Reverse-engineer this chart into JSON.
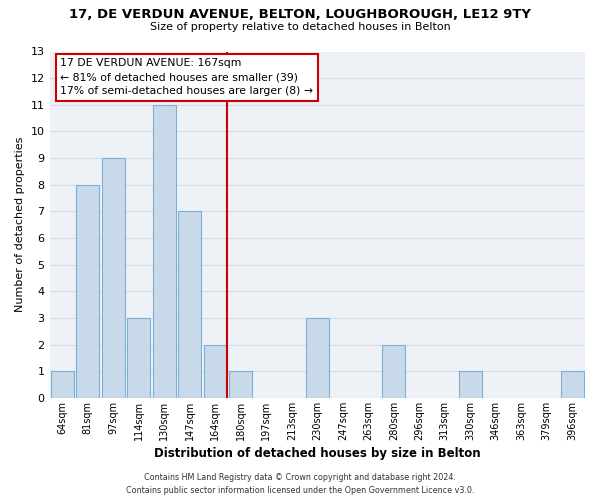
{
  "title": "17, DE VERDUN AVENUE, BELTON, LOUGHBOROUGH, LE12 9TY",
  "subtitle": "Size of property relative to detached houses in Belton",
  "xlabel": "Distribution of detached houses by size in Belton",
  "ylabel": "Number of detached properties",
  "categories": [
    "64sqm",
    "81sqm",
    "97sqm",
    "114sqm",
    "130sqm",
    "147sqm",
    "164sqm",
    "180sqm",
    "197sqm",
    "213sqm",
    "230sqm",
    "247sqm",
    "263sqm",
    "280sqm",
    "296sqm",
    "313sqm",
    "330sqm",
    "346sqm",
    "363sqm",
    "379sqm",
    "396sqm"
  ],
  "values": [
    1,
    8,
    9,
    3,
    11,
    7,
    2,
    1,
    0,
    0,
    3,
    0,
    0,
    2,
    0,
    0,
    1,
    0,
    0,
    0,
    1
  ],
  "bar_color": "#c8daea",
  "bar_edge_color": "#7bafd4",
  "marker_line_x_label": "164sqm",
  "marker_line_color": "#cc0000",
  "ylim": [
    0,
    13
  ],
  "yticks": [
    0,
    1,
    2,
    3,
    4,
    5,
    6,
    7,
    8,
    9,
    10,
    11,
    12,
    13
  ],
  "grid_color": "#d0dde8",
  "annotation_title": "17 DE VERDUN AVENUE: 167sqm",
  "annotation_line1": "← 81% of detached houses are smaller (39)",
  "annotation_line2": "17% of semi-detached houses are larger (8) →",
  "annotation_box_color": "#ffffff",
  "annotation_box_edge_color": "#cc0000",
  "footer_line1": "Contains HM Land Registry data © Crown copyright and database right 2024.",
  "footer_line2": "Contains public sector information licensed under the Open Government Licence v3.0.",
  "background_color": "#ffffff",
  "plot_background_color": "#eef2f7"
}
